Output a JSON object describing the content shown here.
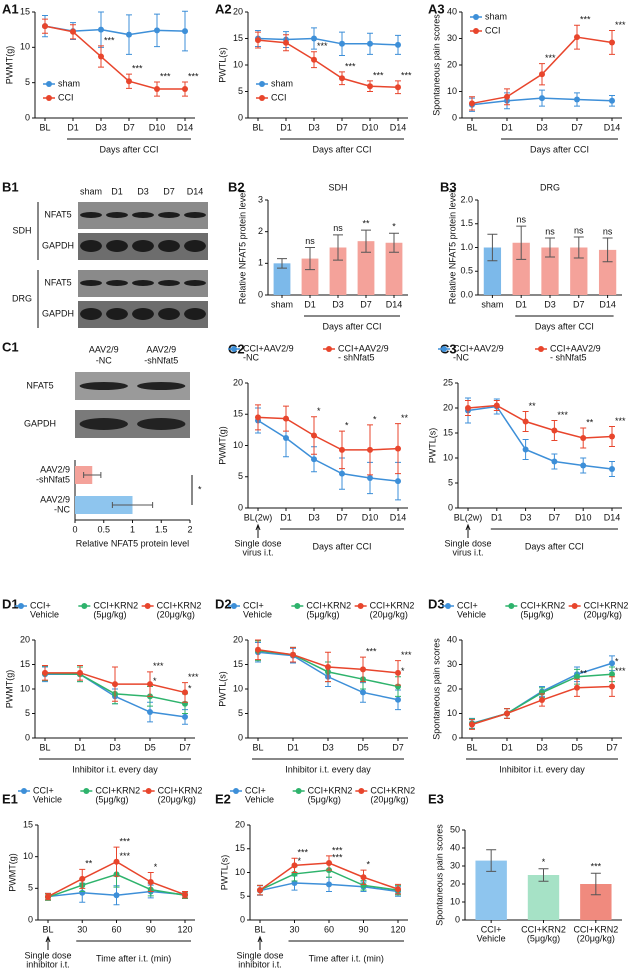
{
  "chart_data": [
    {
      "type": "line",
      "panel": "A1",
      "ylabel": "PWMT(g)",
      "xlabel": "Days after CCI",
      "categories": [
        "BL",
        "D1",
        "D3",
        "D7",
        "D10",
        "D14"
      ],
      "ylim": [
        0,
        15
      ],
      "yticks": [
        0,
        5,
        10,
        15
      ],
      "grid": false,
      "legend": "lower left",
      "significance_color": "#000000",
      "series": [
        {
          "name": "sham",
          "color": "#3d8fd8",
          "values": [
            13,
            12.3,
            12.5,
            11.8,
            12.4,
            12.3
          ],
          "errors": [
            1.5,
            1.2,
            2.5,
            2.8,
            2.3,
            2.8
          ]
        },
        {
          "name": "CCI",
          "color": "#e8452c",
          "values": [
            13,
            12.2,
            8.7,
            5.2,
            4.1,
            4.1
          ],
          "errors": [
            1,
            1,
            1.5,
            1,
            1,
            1
          ],
          "significance": [
            null,
            null,
            "***",
            "***",
            "***",
            "***"
          ]
        }
      ]
    },
    {
      "type": "line",
      "panel": "A2",
      "ylabel": "PWTL(s)",
      "xlabel": "Days after CCI",
      "categories": [
        "BL",
        "D1",
        "D3",
        "D7",
        "D10",
        "D14"
      ],
      "ylim": [
        0,
        20
      ],
      "yticks": [
        0,
        5,
        10,
        15,
        20
      ],
      "grid": false,
      "legend": "lower left",
      "significance_color": "#000000",
      "series": [
        {
          "name": "sham",
          "color": "#3d8fd8",
          "values": [
            15,
            14.8,
            15,
            14,
            14,
            13.8
          ],
          "errors": [
            1.5,
            1.5,
            2,
            2.2,
            2,
            1.8
          ]
        },
        {
          "name": "CCI",
          "color": "#e8452c",
          "values": [
            14.7,
            14.2,
            11,
            7.5,
            6,
            5.8
          ],
          "errors": [
            1.5,
            1.5,
            1.5,
            1.2,
            1,
            1.2
          ],
          "significance": [
            null,
            null,
            "***",
            "***",
            "***",
            "***"
          ]
        }
      ]
    },
    {
      "type": "line",
      "panel": "A3",
      "ylabel": "Spontaneous pain scores",
      "xlabel": "Days after CCI",
      "categories": [
        "BL",
        "D1",
        "D3",
        "D7",
        "D14"
      ],
      "ylim": [
        0,
        40
      ],
      "yticks": [
        0,
        10,
        20,
        30,
        40
      ],
      "grid": false,
      "legend": "upper left",
      "significance_color": "#000000",
      "series": [
        {
          "name": "sham",
          "color": "#3d8fd8",
          "values": [
            5,
            6.5,
            7.5,
            7,
            6.5
          ],
          "errors": [
            2.5,
            3,
            3,
            2.5,
            2
          ]
        },
        {
          "name": "CCI",
          "color": "#e8452c",
          "values": [
            5.5,
            8,
            16.5,
            30.5,
            28.5
          ],
          "errors": [
            2.5,
            3,
            4,
            4.5,
            4.5
          ],
          "significance": [
            null,
            null,
            "***",
            "***",
            "***"
          ]
        }
      ]
    },
    {
      "type": "bar",
      "panel": "B2",
      "title": "SDH",
      "ylabel": "Relative NFAT5 protein level",
      "xlabel": "Days after CCI",
      "categories": [
        "sham",
        "D1",
        "D3",
        "D7",
        "D14"
      ],
      "ylim": [
        0,
        3
      ],
      "yticks": [
        0,
        1,
        2,
        3
      ],
      "grid": false,
      "values": [
        1.0,
        1.15,
        1.5,
        1.7,
        1.65
      ],
      "errors": [
        0.15,
        0.35,
        0.4,
        0.35,
        0.3
      ],
      "colors": [
        "#7cb9ea",
        "#f4a29a",
        "#f4a29a",
        "#f4a29a",
        "#f4a29a"
      ],
      "significance": [
        null,
        "ns",
        "ns",
        "**",
        "*"
      ],
      "significance_color": "#000000"
    },
    {
      "type": "bar",
      "panel": "B3",
      "title": "DRG",
      "ylabel": "Relative NFAT5 protein level",
      "xlabel": "Days after CCI",
      "categories": [
        "sham",
        "D1",
        "D3",
        "D7",
        "D14"
      ],
      "ylim": [
        0,
        2
      ],
      "yticks": [
        {
          "value": 0,
          "label": "0.0"
        },
        0.5,
        {
          "value": 1,
          "label": "1.0"
        },
        1.5,
        {
          "value": 2,
          "label": "2.0"
        }
      ],
      "grid": false,
      "values": [
        1.0,
        1.1,
        1.0,
        1.0,
        0.95
      ],
      "errors": [
        0.28,
        0.35,
        0.2,
        0.22,
        0.25
      ],
      "colors": [
        "#7cb9ea",
        "#f4a29a",
        "#f4a29a",
        "#f4a29a",
        "#f4a29a"
      ],
      "significance": [
        null,
        "ns",
        "ns",
        "ns",
        "ns"
      ],
      "significance_color": "#000000"
    },
    {
      "type": "hbar",
      "xlabel": "Relative NFAT5 protein level",
      "categories": [
        [
          "AAV2/9",
          "-shNfat5"
        ],
        [
          "AAV2/9",
          "-NC"
        ]
      ],
      "xlim": [
        0,
        2
      ],
      "xticks": [
        0,
        0.5,
        1,
        1.5,
        2
      ],
      "grid": false,
      "values": [
        0.3,
        1.0
      ],
      "errors": [
        0.15,
        0.35
      ],
      "colors": [
        "#f4a29a",
        "#8ec5ee"
      ],
      "comparison": "*"
    },
    {
      "type": "line",
      "panel": "C2",
      "ylabel": "PWMT(g)",
      "xlabel": "Days after CCI",
      "note": [
        "Single dose",
        "virus i.t."
      ],
      "categories": [
        "BL(2w)",
        "D1",
        "D3",
        "D7",
        "D10",
        "D14"
      ],
      "ylim": [
        0,
        20
      ],
      "yticks": [
        0,
        5,
        10,
        15,
        20
      ],
      "grid": false,
      "legend": "top",
      "significance_color": "#000000",
      "series": [
        {
          "name": [
            "CCI+AAV2/9",
            "-NC"
          ],
          "color": "#3d8fd8",
          "values": [
            14,
            11.2,
            7.8,
            5.5,
            4.8,
            4.3
          ],
          "errors": [
            2,
            3,
            2,
            2.5,
            2.5,
            3
          ]
        },
        {
          "name": [
            "CCI+AAV2/9",
            "- shNfat5"
          ],
          "color": "#e8452c",
          "values": [
            14.5,
            14.3,
            11.6,
            9.3,
            9.3,
            9.5
          ],
          "errors": [
            2,
            2,
            3,
            3,
            4,
            4
          ],
          "significance": [
            null,
            null,
            "*",
            "*",
            "*",
            "**"
          ]
        }
      ]
    },
    {
      "type": "line",
      "panel": "C3",
      "ylabel": "PWTL(s)",
      "xlabel": "Days after CCI",
      "note": [
        "Single dose",
        "virus i.t."
      ],
      "categories": [
        "BL(2w)",
        "D1",
        "D3",
        "D7",
        "D10",
        "D14"
      ],
      "ylim": [
        0,
        25
      ],
      "yticks": [
        0,
        5,
        10,
        15,
        20,
        25
      ],
      "grid": false,
      "legend": "top",
      "significance_color": "#000000",
      "series": [
        {
          "name": [
            "CCI+AAV2/9",
            "-NC"
          ],
          "color": "#3d8fd8",
          "values": [
            19.5,
            20.3,
            11.7,
            9.3,
            8.5,
            7.8
          ],
          "errors": [
            2.5,
            1.5,
            2,
            1.5,
            1.5,
            1.5
          ]
        },
        {
          "name": [
            "CCI+AAV2/9",
            "- shNfat5"
          ],
          "color": "#e8452c",
          "values": [
            20,
            20.5,
            17.3,
            15.5,
            14,
            14.3
          ],
          "errors": [
            1.5,
            1,
            2,
            2,
            2,
            2
          ],
          "significance": [
            null,
            null,
            "**",
            "***",
            "**",
            "***"
          ]
        }
      ]
    },
    {
      "type": "line",
      "panel": "D1",
      "ylabel": "PWMT(g)",
      "xlabel": "Inhibitor i.t. every day",
      "categories": [
        "BL",
        "D1",
        "D3",
        "D5",
        "D7"
      ],
      "ylim": [
        0,
        20
      ],
      "yticks": [
        0,
        5,
        10,
        15,
        20
      ],
      "grid": false,
      "legend": "top",
      "series": [
        {
          "name": [
            "CCI+",
            "Vehicle"
          ],
          "color": "#3d8fd8",
          "values": [
            13,
            13,
            8.5,
            5.3,
            4.3
          ],
          "errors": [
            1.5,
            1.5,
            1.5,
            2,
            1.5
          ]
        },
        {
          "name": [
            "CCI+KRN2",
            "(5μg/kg)"
          ],
          "color": "#2eb36c",
          "values": [
            13.2,
            13,
            9,
            8.5,
            7
          ],
          "errors": [
            1.5,
            1.5,
            2,
            2,
            2
          ],
          "significance": [
            null,
            null,
            null,
            "*",
            "*"
          ]
        },
        {
          "name": [
            "CCI+KRN2",
            "(20μg/kg)"
          ],
          "color": "#e8452c",
          "values": [
            13.3,
            13.3,
            11,
            11,
            9.3
          ],
          "errors": [
            1.5,
            1.5,
            3.5,
            2.5,
            2
          ],
          "significance": [
            null,
            null,
            null,
            "***",
            "***"
          ]
        }
      ]
    },
    {
      "type": "line",
      "panel": "D2",
      "ylabel": "PWTL(s)",
      "xlabel": "Inhibitor i.t. every day",
      "categories": [
        "BL",
        "D1",
        "D3",
        "D5",
        "D7"
      ],
      "ylim": [
        0,
        20
      ],
      "yticks": [
        0,
        5,
        10,
        15,
        20
      ],
      "grid": false,
      "legend": "top",
      "series": [
        {
          "name": [
            "CCI+",
            "Vehicle"
          ],
          "color": "#3d8fd8",
          "values": [
            17.5,
            16.8,
            12.5,
            9.3,
            7.8
          ],
          "errors": [
            2,
            1.5,
            2,
            2,
            2
          ]
        },
        {
          "name": [
            "CCI+KRN2",
            "(5μg/kg)"
          ],
          "color": "#2eb36c",
          "values": [
            17.8,
            17,
            13.5,
            12,
            10.5
          ],
          "errors": [
            2,
            1.5,
            2,
            2,
            2
          ],
          "significance": [
            null,
            null,
            null,
            null,
            "*"
          ]
        },
        {
          "name": [
            "CCI+KRN2",
            "(20μg/kg)"
          ],
          "color": "#e8452c",
          "values": [
            18,
            17,
            14.5,
            14,
            13.3
          ],
          "errors": [
            2,
            1.5,
            3,
            2.5,
            2.5
          ],
          "significance": [
            null,
            null,
            null,
            "***",
            "***"
          ]
        }
      ]
    },
    {
      "type": "line",
      "panel": "D3",
      "ylabel": "Spontaneous pain scores",
      "xlabel": "Inhibitor i.t. every day",
      "categories": [
        "BL",
        "D1",
        "D3",
        "D5",
        "D7"
      ],
      "ylim": [
        0,
        40
      ],
      "yticks": [
        0,
        10,
        20,
        30,
        40
      ],
      "grid": false,
      "legend": "top",
      "series": [
        {
          "name": [
            "CCI+",
            "Vehicle"
          ],
          "color": "#3d8fd8",
          "values": [
            6,
            10,
            19,
            26,
            30.5
          ],
          "errors": [
            2,
            2,
            2,
            3,
            3
          ]
        },
        {
          "name": [
            "CCI+KRN2",
            "(5μg/kg)"
          ],
          "color": "#2eb36c",
          "values": [
            5.8,
            10,
            18.5,
            25,
            26
          ],
          "errors": [
            2,
            2,
            2,
            3,
            3
          ],
          "significance": [
            null,
            null,
            null,
            null,
            "*"
          ]
        },
        {
          "name": [
            "CCI+KRN2",
            "(20μg/kg)"
          ],
          "color": "#e8452c",
          "values": [
            5.5,
            10,
            15.5,
            20.5,
            21
          ],
          "errors": [
            2,
            2,
            2.5,
            3.5,
            4
          ],
          "significance": [
            null,
            null,
            null,
            "**",
            "***"
          ]
        }
      ]
    },
    {
      "type": "line",
      "panel": "E1",
      "ylabel": "PWMT(g)",
      "xlabel": "Time after i.t. (min)",
      "note": [
        "Single dose",
        "inhibitor i.t."
      ],
      "categories": [
        "BL",
        "30",
        "60",
        "90",
        "120"
      ],
      "ylim": [
        0,
        15
      ],
      "yticks": [
        0,
        5,
        10,
        15
      ],
      "grid": false,
      "legend": "top",
      "series": [
        {
          "name": [
            "CCI+",
            "Vehicle"
          ],
          "color": "#3d8fd8",
          "values": [
            3.7,
            4.3,
            3.9,
            4.5,
            4
          ],
          "errors": [
            0.5,
            1.5,
            1.5,
            1,
            0.5
          ]
        },
        {
          "name": [
            "CCI+KRN2",
            "(5μg/kg)"
          ],
          "color": "#2eb36c",
          "values": [
            3.6,
            5.5,
            7.2,
            4.8,
            3.9
          ],
          "errors": [
            0.5,
            1,
            2,
            1,
            0.5
          ],
          "significance": [
            null,
            null,
            "***",
            null,
            null
          ]
        },
        {
          "name": [
            "CCI+KRN2",
            "(20μg/kg)"
          ],
          "color": "#e8452c",
          "values": [
            3.7,
            6.5,
            9.2,
            6,
            4
          ],
          "errors": [
            0.5,
            1.5,
            2.3,
            1.5,
            0.5
          ],
          "significance": [
            null,
            "**",
            "***",
            "*",
            null
          ]
        }
      ]
    },
    {
      "type": "line",
      "panel": "E2",
      "ylabel": "PWTL(s)",
      "xlabel": "Time after i.t. (min)",
      "note": [
        "Single dose",
        "inhibitor i.t."
      ],
      "categories": [
        "BL",
        "30",
        "60",
        "90",
        "120"
      ],
      "ylim": [
        0,
        20
      ],
      "yticks": [
        0,
        5,
        10,
        15,
        20
      ],
      "grid": false,
      "legend": "top",
      "series": [
        {
          "name": [
            "CCI+",
            "Vehicle"
          ],
          "color": "#3d8fd8",
          "values": [
            6.2,
            7.8,
            7.5,
            7,
            6
          ],
          "errors": [
            1,
            1.5,
            1.5,
            1,
            1
          ]
        },
        {
          "name": [
            "CCI+KRN2",
            "(5μg/kg)"
          ],
          "color": "#2eb36c",
          "values": [
            6.3,
            9.7,
            10.5,
            7.3,
            6.3
          ],
          "errors": [
            1,
            1.5,
            1.5,
            1,
            1
          ],
          "significance": [
            null,
            "*",
            "***",
            null,
            null
          ]
        },
        {
          "name": [
            "CCI+KRN2",
            "(20μg/kg)"
          ],
          "color": "#e8452c",
          "values": [
            6.3,
            11.5,
            12,
            9,
            6.5
          ],
          "errors": [
            1,
            1.5,
            1.5,
            1.5,
            1
          ],
          "significance": [
            null,
            "***",
            "***",
            "*",
            null
          ]
        }
      ]
    },
    {
      "type": "bar",
      "panel": "E3",
      "ylabel": "Spontaneous pain scores",
      "categories": [
        [
          "CCI+",
          "Vehicle"
        ],
        [
          "CCI+KRN2",
          "(5μg/kg)"
        ],
        [
          "CCI+KRN2",
          "(20μg/kg)"
        ]
      ],
      "ylim": [
        0,
        50
      ],
      "yticks": [
        0,
        10,
        20,
        30,
        40,
        50
      ],
      "grid": false,
      "values": [
        33,
        25,
        20
      ],
      "errors": [
        6,
        3.5,
        6
      ],
      "colors": [
        "#8ec5ee",
        "#a6e2c6",
        "#f08a7e"
      ],
      "significance": [
        null,
        "*",
        "***"
      ],
      "significance_color": "#000000"
    }
  ],
  "blots": {
    "b1": {
      "panel": "B1",
      "lanes": [
        "sham",
        "D1",
        "D3",
        "D7",
        "D14"
      ],
      "groups": [
        {
          "name": "SDH",
          "rows": [
            "NFAT5",
            "GAPDH"
          ]
        },
        {
          "name": "DRG",
          "rows": [
            "NFAT5",
            "GAPDH"
          ]
        }
      ]
    },
    "c1": {
      "panel": "C1",
      "lanes": [
        [
          "AAV2/9",
          "-NC"
        ],
        [
          "AAV2/9",
          "-shNfat5"
        ]
      ],
      "rows": [
        "NFAT5",
        "GAPDH"
      ]
    }
  }
}
